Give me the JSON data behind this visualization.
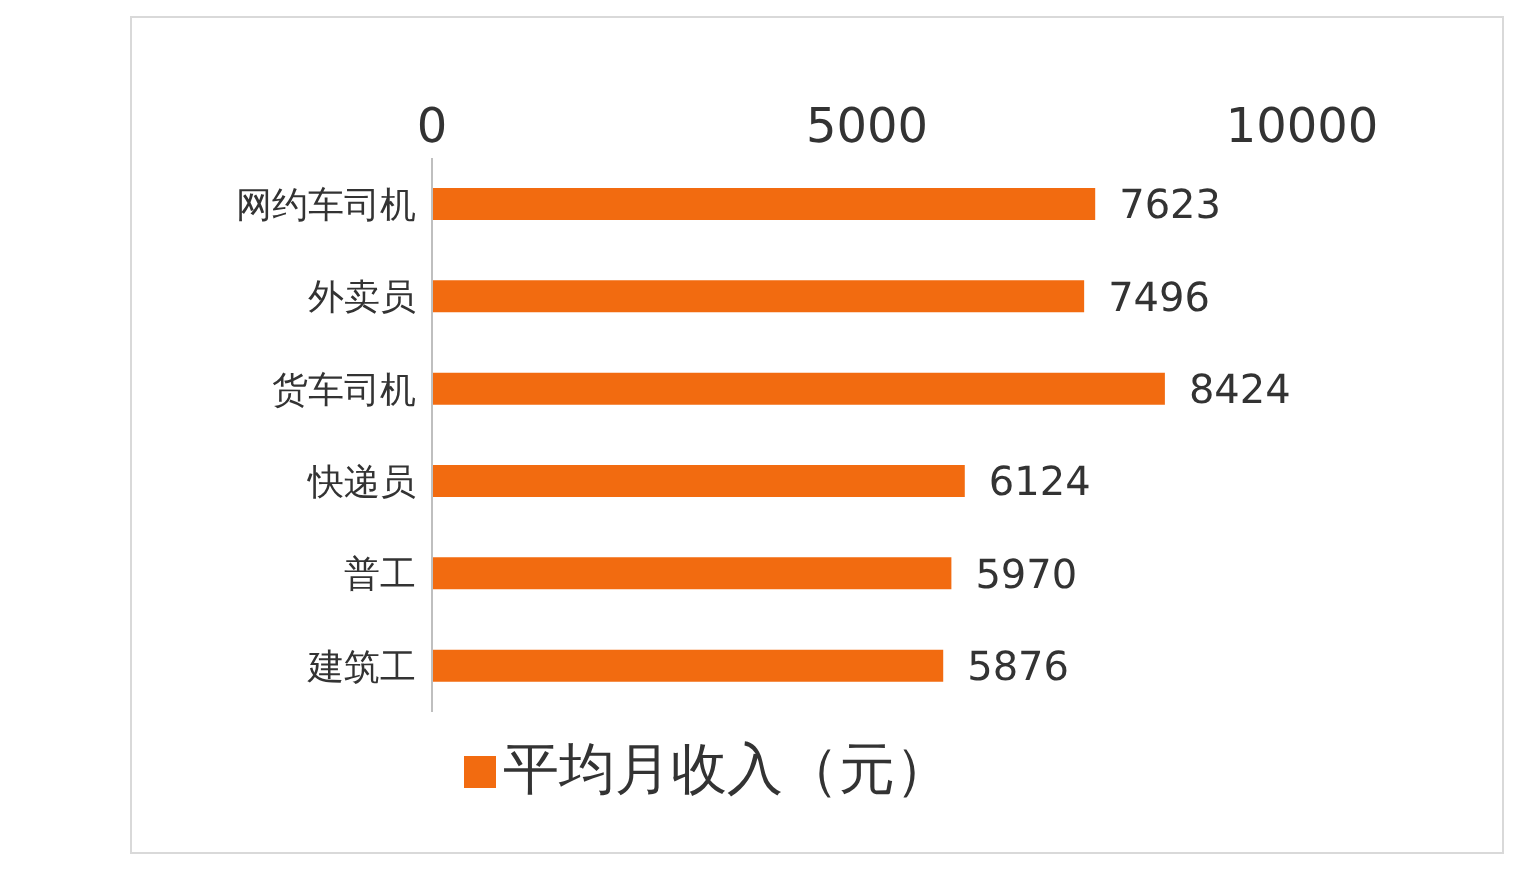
{
  "chart_data": {
    "type": "bar",
    "orientation": "horizontal",
    "categories": [
      "网约车司机",
      "外卖员",
      "货车司机",
      "快递员",
      "普工",
      "建筑工"
    ],
    "series": [
      {
        "name": "平均月收入（元）",
        "color": "#f26b10",
        "values": [
          7623,
          7496,
          8424,
          6124,
          5970,
          5876
        ]
      }
    ],
    "xlim": [
      0,
      10000
    ],
    "xticks": [
      0,
      5000,
      10000
    ],
    "data_labels": true,
    "legend": "bottom",
    "grid": false
  }
}
